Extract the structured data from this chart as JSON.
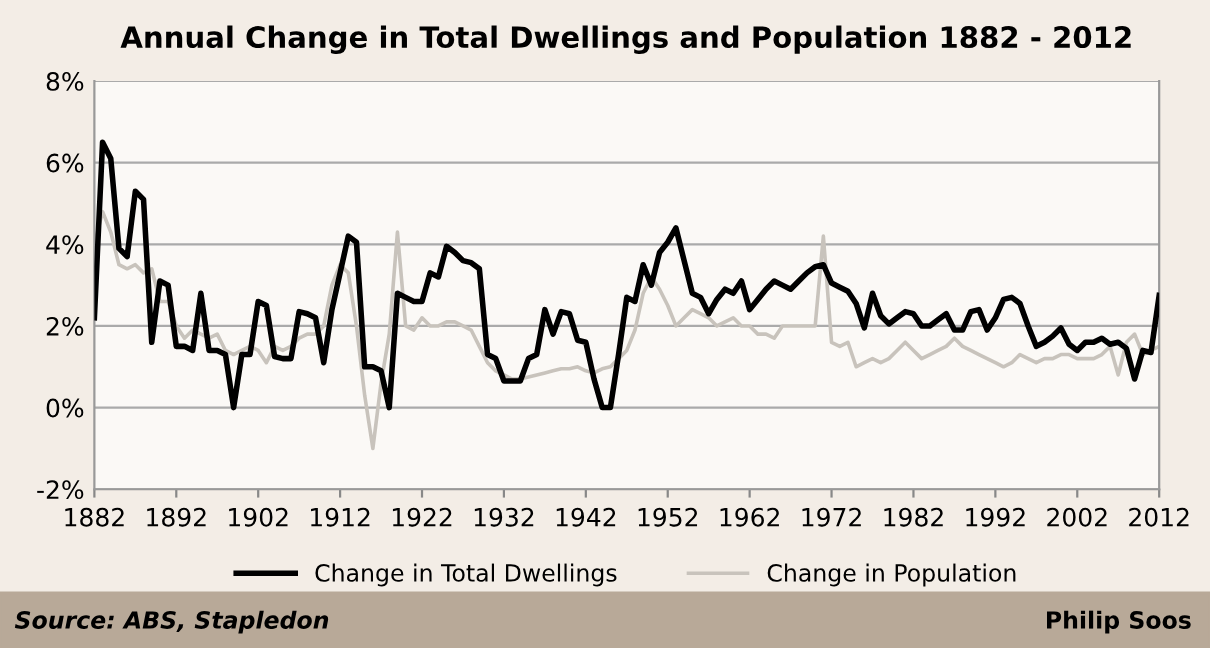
{
  "chart_data": {
    "type": "line",
    "title": "Annual Change in Total Dwellings and Population 1882 - 2012",
    "x": [
      1882,
      1883,
      1884,
      1885,
      1886,
      1887,
      1888,
      1889,
      1890,
      1891,
      1892,
      1893,
      1894,
      1895,
      1896,
      1897,
      1898,
      1899,
      1900,
      1901,
      1902,
      1903,
      1904,
      1905,
      1906,
      1907,
      1908,
      1909,
      1910,
      1911,
      1912,
      1913,
      1914,
      1915,
      1916,
      1917,
      1918,
      1919,
      1920,
      1921,
      1922,
      1923,
      1924,
      1925,
      1926,
      1927,
      1928,
      1929,
      1930,
      1931,
      1932,
      1933,
      1934,
      1935,
      1936,
      1937,
      1938,
      1939,
      1940,
      1941,
      1942,
      1943,
      1944,
      1945,
      1946,
      1947,
      1948,
      1949,
      1950,
      1951,
      1952,
      1953,
      1954,
      1955,
      1956,
      1957,
      1958,
      1959,
      1960,
      1961,
      1962,
      1963,
      1964,
      1965,
      1966,
      1967,
      1968,
      1969,
      1970,
      1971,
      1972,
      1973,
      1974,
      1975,
      1976,
      1977,
      1978,
      1979,
      1980,
      1981,
      1982,
      1983,
      1984,
      1985,
      1986,
      1987,
      1988,
      1989,
      1990,
      1991,
      1992,
      1993,
      1994,
      1995,
      1996,
      1997,
      1998,
      1999,
      2000,
      2001,
      2002,
      2003,
      2004,
      2005,
      2006,
      2007,
      2008,
      2009,
      2010,
      2011,
      2012
    ],
    "series": [
      {
        "name": "Change in Total Dwellings",
        "color": "#000000",
        "values": [
          2.2,
          6.5,
          6.1,
          3.9,
          3.7,
          5.3,
          5.1,
          1.6,
          3.1,
          3.0,
          1.5,
          1.5,
          1.4,
          2.8,
          1.4,
          1.4,
          1.3,
          0.0,
          1.3,
          1.3,
          2.6,
          2.5,
          1.25,
          1.2,
          1.2,
          2.35,
          2.3,
          2.2,
          1.1,
          2.4,
          3.3,
          4.2,
          4.05,
          1.0,
          1.0,
          0.9,
          0.0,
          2.8,
          2.7,
          2.6,
          2.6,
          3.3,
          3.2,
          3.95,
          3.8,
          3.6,
          3.55,
          3.4,
          1.3,
          1.2,
          0.65,
          0.65,
          0.65,
          1.2,
          1.3,
          2.4,
          1.8,
          2.35,
          2.3,
          1.65,
          1.6,
          0.7,
          0.0,
          0.0,
          1.3,
          2.7,
          2.6,
          3.5,
          3.0,
          3.8,
          4.05,
          4.4,
          3.6,
          2.8,
          2.7,
          2.3,
          2.65,
          2.9,
          2.8,
          3.1,
          2.4,
          2.65,
          2.9,
          3.1,
          3.0,
          2.9,
          3.1,
          3.3,
          3.45,
          3.5,
          3.05,
          2.95,
          2.85,
          2.55,
          1.95,
          2.8,
          2.25,
          2.05,
          2.2,
          2.35,
          2.3,
          2.0,
          2.0,
          2.15,
          2.3,
          1.9,
          1.9,
          2.35,
          2.4,
          1.9,
          2.2,
          2.65,
          2.7,
          2.55,
          2.0,
          1.5,
          1.6,
          1.75,
          1.95,
          1.55,
          1.4,
          1.6,
          1.6,
          1.7,
          1.55,
          1.6,
          1.45,
          0.7,
          1.4,
          1.35,
          2.75
        ]
      },
      {
        "name": "Change in Population",
        "color": "#c8c3bc",
        "values": [
          4.0,
          4.8,
          4.3,
          3.5,
          3.4,
          3.5,
          3.3,
          3.4,
          2.6,
          2.6,
          2.0,
          1.7,
          1.9,
          1.8,
          1.7,
          1.8,
          1.4,
          1.3,
          1.4,
          1.5,
          1.4,
          1.1,
          1.5,
          1.4,
          1.5,
          1.7,
          1.8,
          1.8,
          2.0,
          3.0,
          3.5,
          3.3,
          2.0,
          0.3,
          -1.0,
          0.6,
          1.8,
          4.3,
          2.0,
          1.9,
          2.2,
          2.0,
          2.0,
          2.1,
          2.1,
          2.0,
          1.9,
          1.5,
          1.1,
          0.9,
          0.8,
          0.7,
          0.7,
          0.75,
          0.8,
          0.85,
          0.9,
          0.95,
          0.95,
          1.0,
          0.9,
          0.85,
          0.95,
          1.0,
          1.2,
          1.4,
          1.9,
          2.8,
          3.2,
          2.9,
          2.5,
          2.0,
          2.2,
          2.4,
          2.3,
          2.2,
          2.0,
          2.1,
          2.2,
          2.0,
          2.0,
          1.8,
          1.8,
          1.7,
          2.0,
          2.0,
          2.0,
          2.0,
          2.0,
          4.2,
          1.6,
          1.5,
          1.6,
          1.0,
          1.1,
          1.2,
          1.1,
          1.2,
          1.4,
          1.6,
          1.4,
          1.2,
          1.3,
          1.4,
          1.5,
          1.7,
          1.5,
          1.4,
          1.3,
          1.2,
          1.1,
          1.0,
          1.1,
          1.3,
          1.2,
          1.1,
          1.2,
          1.2,
          1.3,
          1.3,
          1.2,
          1.2,
          1.2,
          1.3,
          1.5,
          0.8,
          1.6,
          1.8,
          1.3,
          1.4,
          1.5
        ]
      }
    ],
    "xlim": [
      1882,
      2012
    ],
    "xticks": [
      1882,
      1892,
      1902,
      1912,
      1922,
      1932,
      1942,
      1952,
      1962,
      1972,
      1982,
      1992,
      2002,
      2012
    ],
    "ylim": [
      -2,
      8
    ],
    "yticks": [
      {
        "value": -2,
        "label": "-2%"
      },
      {
        "value": 0,
        "label": "0%"
      },
      {
        "value": 2,
        "label": "2%"
      },
      {
        "value": 4,
        "label": "4%"
      },
      {
        "value": 6,
        "label": "6%"
      },
      {
        "value": 8,
        "label": "8%"
      }
    ],
    "grid": "y",
    "legend": "bottom",
    "marker": "none",
    "line_style": "solid",
    "annotations": [
      "Source: ABS, Stapledon",
      "Philip Soos"
    ]
  }
}
